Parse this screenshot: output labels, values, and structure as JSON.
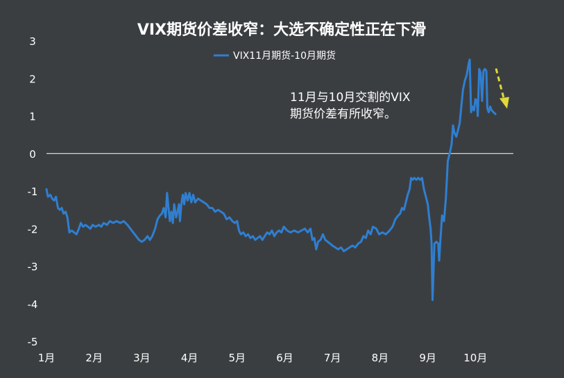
{
  "colors": {
    "background": "#3b3e41",
    "series": "#2f7fd1",
    "zero_line": "#ffffff",
    "text": "#ffffff",
    "arrow": "#e0d83a"
  },
  "chart_data": {
    "type": "line",
    "title": "VIX期货价差收窄：大选不确定性正在下滑",
    "xlabel": "",
    "ylabel": "",
    "ylim": [
      -5,
      3
    ],
    "yticks": [
      3,
      2,
      1,
      0,
      -1,
      -2,
      -3,
      -4,
      -5
    ],
    "xlim": [
      0,
      11
    ],
    "xticks": [
      {
        "x": 0,
        "label": "1月"
      },
      {
        "x": 1,
        "label": "2月"
      },
      {
        "x": 2,
        "label": "3月"
      },
      {
        "x": 3,
        "label": "4月"
      },
      {
        "x": 4,
        "label": "5月"
      },
      {
        "x": 5,
        "label": "6月"
      },
      {
        "x": 6,
        "label": "7月"
      },
      {
        "x": 7,
        "label": "8月"
      },
      {
        "x": 8,
        "label": "9月"
      },
      {
        "x": 9,
        "label": "10月"
      }
    ],
    "grid": false,
    "zero_line": true,
    "legend_position": "top-center",
    "annotation": "11月与10月交割的VIX期货价差有所收窄。",
    "series": [
      {
        "name": "VIX11月期货-10月期货",
        "points": [
          [
            0.0,
            -0.95
          ],
          [
            0.03,
            -1.15
          ],
          [
            0.08,
            -1.1
          ],
          [
            0.12,
            -1.2
          ],
          [
            0.16,
            -1.25
          ],
          [
            0.2,
            -1.15
          ],
          [
            0.24,
            -1.45
          ],
          [
            0.28,
            -1.5
          ],
          [
            0.32,
            -1.45
          ],
          [
            0.36,
            -1.6
          ],
          [
            0.4,
            -1.55
          ],
          [
            0.44,
            -1.7
          ],
          [
            0.48,
            -2.1
          ],
          [
            0.53,
            -2.05
          ],
          [
            0.58,
            -2.1
          ],
          [
            0.63,
            -2.15
          ],
          [
            0.68,
            -2.0
          ],
          [
            0.72,
            -1.85
          ],
          [
            0.77,
            -1.95
          ],
          [
            0.82,
            -1.9
          ],
          [
            0.87,
            -1.95
          ],
          [
            0.92,
            -2.0
          ],
          [
            0.97,
            -1.9
          ],
          [
            1.03,
            -1.95
          ],
          [
            1.1,
            -1.9
          ],
          [
            1.15,
            -1.95
          ],
          [
            1.2,
            -1.85
          ],
          [
            1.27,
            -1.9
          ],
          [
            1.33,
            -1.8
          ],
          [
            1.4,
            -1.85
          ],
          [
            1.47,
            -1.8
          ],
          [
            1.55,
            -1.85
          ],
          [
            1.62,
            -1.8
          ],
          [
            1.7,
            -1.9
          ],
          [
            1.76,
            -2.0
          ],
          [
            1.82,
            -2.1
          ],
          [
            1.88,
            -2.2
          ],
          [
            1.94,
            -2.3
          ],
          [
            2.0,
            -2.35
          ],
          [
            2.06,
            -2.3
          ],
          [
            2.12,
            -2.2
          ],
          [
            2.17,
            -2.3
          ],
          [
            2.22,
            -2.2
          ],
          [
            2.28,
            -2.0
          ],
          [
            2.33,
            -1.75
          ],
          [
            2.38,
            -1.65
          ],
          [
            2.42,
            -1.6
          ],
          [
            2.46,
            -1.45
          ],
          [
            2.5,
            -1.7
          ],
          [
            2.53,
            -1.05
          ],
          [
            2.56,
            -1.45
          ],
          [
            2.59,
            -1.8
          ],
          [
            2.62,
            -1.55
          ],
          [
            2.65,
            -1.85
          ],
          [
            2.68,
            -1.35
          ],
          [
            2.72,
            -1.7
          ],
          [
            2.75,
            -1.55
          ],
          [
            2.78,
            -1.35
          ],
          [
            2.8,
            -1.8
          ],
          [
            2.83,
            -1.35
          ],
          [
            2.86,
            -1.1
          ],
          [
            2.89,
            -1.35
          ],
          [
            2.92,
            -1.05
          ],
          [
            2.96,
            -1.25
          ],
          [
            3.0,
            -1.05
          ],
          [
            3.04,
            -1.3
          ],
          [
            3.08,
            -1.1
          ],
          [
            3.12,
            -1.3
          ],
          [
            3.18,
            -1.2
          ],
          [
            3.24,
            -1.25
          ],
          [
            3.3,
            -1.3
          ],
          [
            3.36,
            -1.35
          ],
          [
            3.42,
            -1.45
          ],
          [
            3.48,
            -1.45
          ],
          [
            3.54,
            -1.55
          ],
          [
            3.6,
            -1.5
          ],
          [
            3.66,
            -1.55
          ],
          [
            3.72,
            -1.6
          ],
          [
            3.78,
            -1.75
          ],
          [
            3.84,
            -1.7
          ],
          [
            3.9,
            -1.8
          ],
          [
            3.95,
            -1.85
          ],
          [
            4.0,
            -1.8
          ],
          [
            4.04,
            -2.05
          ],
          [
            4.08,
            -2.15
          ],
          [
            4.13,
            -2.1
          ],
          [
            4.18,
            -2.2
          ],
          [
            4.23,
            -2.15
          ],
          [
            4.28,
            -2.25
          ],
          [
            4.33,
            -2.2
          ],
          [
            4.38,
            -2.3
          ],
          [
            4.43,
            -2.25
          ],
          [
            4.48,
            -2.2
          ],
          [
            4.53,
            -2.3
          ],
          [
            4.58,
            -2.2
          ],
          [
            4.63,
            -2.1
          ],
          [
            4.68,
            -2.15
          ],
          [
            4.73,
            -2.05
          ],
          [
            4.78,
            -2.2
          ],
          [
            4.83,
            -2.1
          ],
          [
            4.88,
            -2.05
          ],
          [
            4.93,
            -2.1
          ],
          [
            4.98,
            -1.95
          ],
          [
            5.05,
            -2.05
          ],
          [
            5.12,
            -2.1
          ],
          [
            5.2,
            -2.05
          ],
          [
            5.28,
            -2.1
          ],
          [
            5.35,
            -2.05
          ],
          [
            5.42,
            -2.0
          ],
          [
            5.48,
            -2.1
          ],
          [
            5.54,
            -2.0
          ],
          [
            5.58,
            -2.3
          ],
          [
            5.62,
            -2.25
          ],
          [
            5.66,
            -2.55
          ],
          [
            5.7,
            -2.35
          ],
          [
            5.75,
            -2.3
          ],
          [
            5.8,
            -2.15
          ],
          [
            5.85,
            -2.3
          ],
          [
            5.9,
            -2.35
          ],
          [
            5.95,
            -2.4
          ],
          [
            6.0,
            -2.45
          ],
          [
            6.06,
            -2.5
          ],
          [
            6.12,
            -2.55
          ],
          [
            6.18,
            -2.5
          ],
          [
            6.24,
            -2.6
          ],
          [
            6.3,
            -2.55
          ],
          [
            6.36,
            -2.5
          ],
          [
            6.42,
            -2.45
          ],
          [
            6.48,
            -2.5
          ],
          [
            6.54,
            -2.4
          ],
          [
            6.6,
            -2.35
          ],
          [
            6.65,
            -2.2
          ],
          [
            6.7,
            -2.25
          ],
          [
            6.75,
            -2.05
          ],
          [
            6.8,
            -2.15
          ],
          [
            6.85,
            -1.95
          ],
          [
            6.92,
            -2.0
          ],
          [
            6.98,
            -2.15
          ],
          [
            7.05,
            -2.1
          ],
          [
            7.12,
            -2.15
          ],
          [
            7.2,
            -2.05
          ],
          [
            7.26,
            -1.95
          ],
          [
            7.32,
            -1.75
          ],
          [
            7.38,
            -1.65
          ],
          [
            7.42,
            -1.6
          ],
          [
            7.46,
            -1.45
          ],
          [
            7.5,
            -1.5
          ],
          [
            7.54,
            -1.3
          ],
          [
            7.58,
            -1.1
          ],
          [
            7.62,
            -0.95
          ],
          [
            7.65,
            -0.65
          ],
          [
            7.68,
            -0.7
          ],
          [
            7.72,
            -0.65
          ],
          [
            7.76,
            -0.7
          ],
          [
            7.8,
            -0.65
          ],
          [
            7.84,
            -0.7
          ],
          [
            7.88,
            -0.65
          ],
          [
            7.92,
            -0.95
          ],
          [
            7.96,
            -1.15
          ],
          [
            8.0,
            -1.35
          ],
          [
            8.03,
            -1.7
          ],
          [
            8.06,
            -2.0
          ],
          [
            8.08,
            -2.4
          ],
          [
            8.1,
            -3.9
          ],
          [
            8.12,
            -3.2
          ],
          [
            8.14,
            -2.4
          ],
          [
            8.18,
            -2.35
          ],
          [
            8.22,
            -2.4
          ],
          [
            8.24,
            -2.85
          ],
          [
            8.26,
            -2.4
          ],
          [
            8.3,
            -1.65
          ],
          [
            8.34,
            -1.8
          ],
          [
            8.38,
            -1.2
          ],
          [
            8.42,
            -0.2
          ],
          [
            8.46,
            0.0
          ],
          [
            8.5,
            0.25
          ],
          [
            8.53,
            0.75
          ],
          [
            8.56,
            0.55
          ],
          [
            8.6,
            0.45
          ],
          [
            8.63,
            0.6
          ],
          [
            8.67,
            0.8
          ],
          [
            8.7,
            1.2
          ],
          [
            8.74,
            1.7
          ],
          [
            8.78,
            1.95
          ],
          [
            8.82,
            2.1
          ],
          [
            8.86,
            2.4
          ],
          [
            8.88,
            2.5
          ],
          [
            8.91,
            1.1
          ],
          [
            8.94,
            1.25
          ],
          [
            8.97,
            1.15
          ],
          [
            9.0,
            1.45
          ],
          [
            9.03,
            1.4
          ],
          [
            9.05,
            1.0
          ],
          [
            9.08,
            2.25
          ],
          [
            9.11,
            2.15
          ],
          [
            9.14,
            1.4
          ],
          [
            9.17,
            2.2
          ],
          [
            9.2,
            2.25
          ],
          [
            9.23,
            2.2
          ],
          [
            9.25,
            1.2
          ],
          [
            9.28,
            1.1
          ],
          [
            9.31,
            1.25
          ],
          [
            9.34,
            1.15
          ],
          [
            9.38,
            1.1
          ],
          [
            9.42,
            1.05
          ]
        ]
      }
    ]
  }
}
